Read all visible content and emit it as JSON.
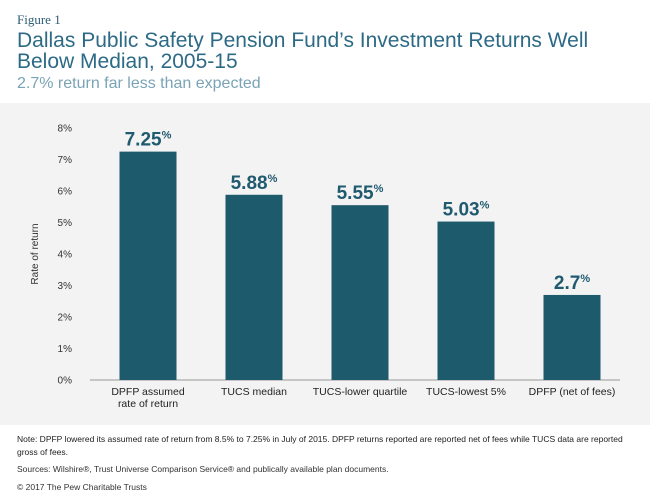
{
  "figure_label": "Figure 1",
  "title": "Dallas Public Safety Pension Fund’s Investment Returns Well Below Median, 2005-15",
  "subtitle": "2.7% return far less than expected",
  "note": "Note: DPFP lowered its assumed rate of return from 8.5% to 7.25% in July of 2015. DPFP returns reported are reported net of fees while TUCS data are reported gross of fees.",
  "sources": "Sources: Wilshire®, Trust Universe Comparison Service® and publically available plan documents.",
  "copyright": "© 2017 The Pew Charitable Trusts",
  "colors": {
    "bar": "#1d5a6b",
    "label": "#1f5a6f",
    "panel": "#f3f3f3"
  },
  "chart_data": {
    "type": "bar",
    "categories": [
      [
        "DPFP assumed",
        "rate of return"
      ],
      [
        "TUCS median"
      ],
      [
        "TUCS-lower quartile"
      ],
      [
        "TUCS-lowest 5%"
      ],
      [
        "DPFP (net of fees)"
      ]
    ],
    "values": [
      7.25,
      5.88,
      5.55,
      5.03,
      2.7
    ],
    "data_labels": [
      "7.25",
      "5.88",
      "5.55",
      "5.03",
      "2.7"
    ],
    "data_label_suffix": "%",
    "ylabel": "Rate of return",
    "ylim": [
      0,
      8
    ],
    "yticks": [
      0,
      1,
      2,
      3,
      4,
      5,
      6,
      7,
      8
    ],
    "ytick_labels": [
      "0%",
      "1%",
      "2%",
      "3%",
      "4%",
      "5%",
      "6%",
      "7%",
      "8%"
    ],
    "grid": false,
    "legend": "none"
  }
}
